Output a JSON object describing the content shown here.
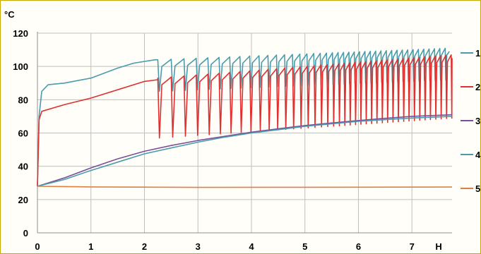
{
  "chart_data": {
    "type": "line",
    "y_unit": "°C",
    "x_unit": "H",
    "xlim": [
      0,
      7.75
    ],
    "ylim": [
      0,
      120
    ],
    "x_ticks": [
      "0",
      "1",
      "2",
      "3",
      "4",
      "5",
      "6",
      "7"
    ],
    "y_ticks": [
      "0",
      "20",
      "40",
      "60",
      "80",
      "100",
      "120"
    ],
    "grid": true,
    "legend_position": "right",
    "series": [
      {
        "name": "1",
        "color": "#4a9bab",
        "points": [
          [
            0,
            28
          ],
          [
            0.03,
            70
          ],
          [
            0.08,
            85
          ],
          [
            0.2,
            89
          ],
          [
            0.5,
            90
          ],
          [
            1,
            93
          ],
          [
            1.5,
            99
          ],
          [
            1.8,
            102
          ],
          [
            2.2,
            104
          ]
        ],
        "oscillation": {
          "start": 2.25,
          "end": 7.7,
          "top_start": 104,
          "top_end": 111,
          "bottom_start": 85,
          "bottom_end": 92,
          "period_start": 0.25,
          "period_end": 0.1
        }
      },
      {
        "name": "2",
        "color": "#e03030",
        "points": [
          [
            0,
            28
          ],
          [
            0.03,
            68
          ],
          [
            0.08,
            73
          ],
          [
            0.5,
            77
          ],
          [
            1,
            81
          ],
          [
            1.5,
            86
          ],
          [
            2,
            91
          ],
          [
            2.25,
            92
          ]
        ],
        "oscillation": {
          "start": 2.25,
          "end": 7.75,
          "top_start": 93,
          "top_end": 107,
          "bottom_start": 57,
          "bottom_end": 69,
          "period_start": 0.25,
          "period_end": 0.1
        }
      },
      {
        "name": "3",
        "color": "#7a4f9a",
        "points": [
          [
            0,
            28
          ],
          [
            0.5,
            33
          ],
          [
            1,
            39
          ],
          [
            1.5,
            44.5
          ],
          [
            2,
            49
          ],
          [
            2.5,
            52.5
          ],
          [
            3,
            55.5
          ],
          [
            3.5,
            58
          ],
          [
            4,
            60.5
          ],
          [
            4.5,
            62.5
          ],
          [
            5,
            64.5
          ],
          [
            5.5,
            66
          ],
          [
            6,
            67.5
          ],
          [
            6.5,
            68.8
          ],
          [
            7,
            70
          ],
          [
            7.75,
            71
          ]
        ]
      },
      {
        "name": "4",
        "color": "#4a9bab",
        "points": [
          [
            0,
            28
          ],
          [
            0.5,
            32
          ],
          [
            1,
            37.5
          ],
          [
            1.5,
            42.5
          ],
          [
            2,
            47.5
          ],
          [
            2.5,
            51
          ],
          [
            3,
            54.5
          ],
          [
            3.5,
            57.5
          ],
          [
            4,
            60
          ],
          [
            4.5,
            62
          ],
          [
            5,
            64
          ],
          [
            5.5,
            65.5
          ],
          [
            6,
            67
          ],
          [
            6.5,
            68
          ],
          [
            7,
            69
          ],
          [
            7.75,
            70
          ]
        ]
      },
      {
        "name": "5",
        "color": "#e08040",
        "points": [
          [
            0,
            28
          ],
          [
            0.5,
            27.8
          ],
          [
            1,
            27.6
          ],
          [
            3,
            27.3
          ],
          [
            5,
            27.4
          ],
          [
            7.75,
            27.5
          ]
        ]
      }
    ]
  }
}
